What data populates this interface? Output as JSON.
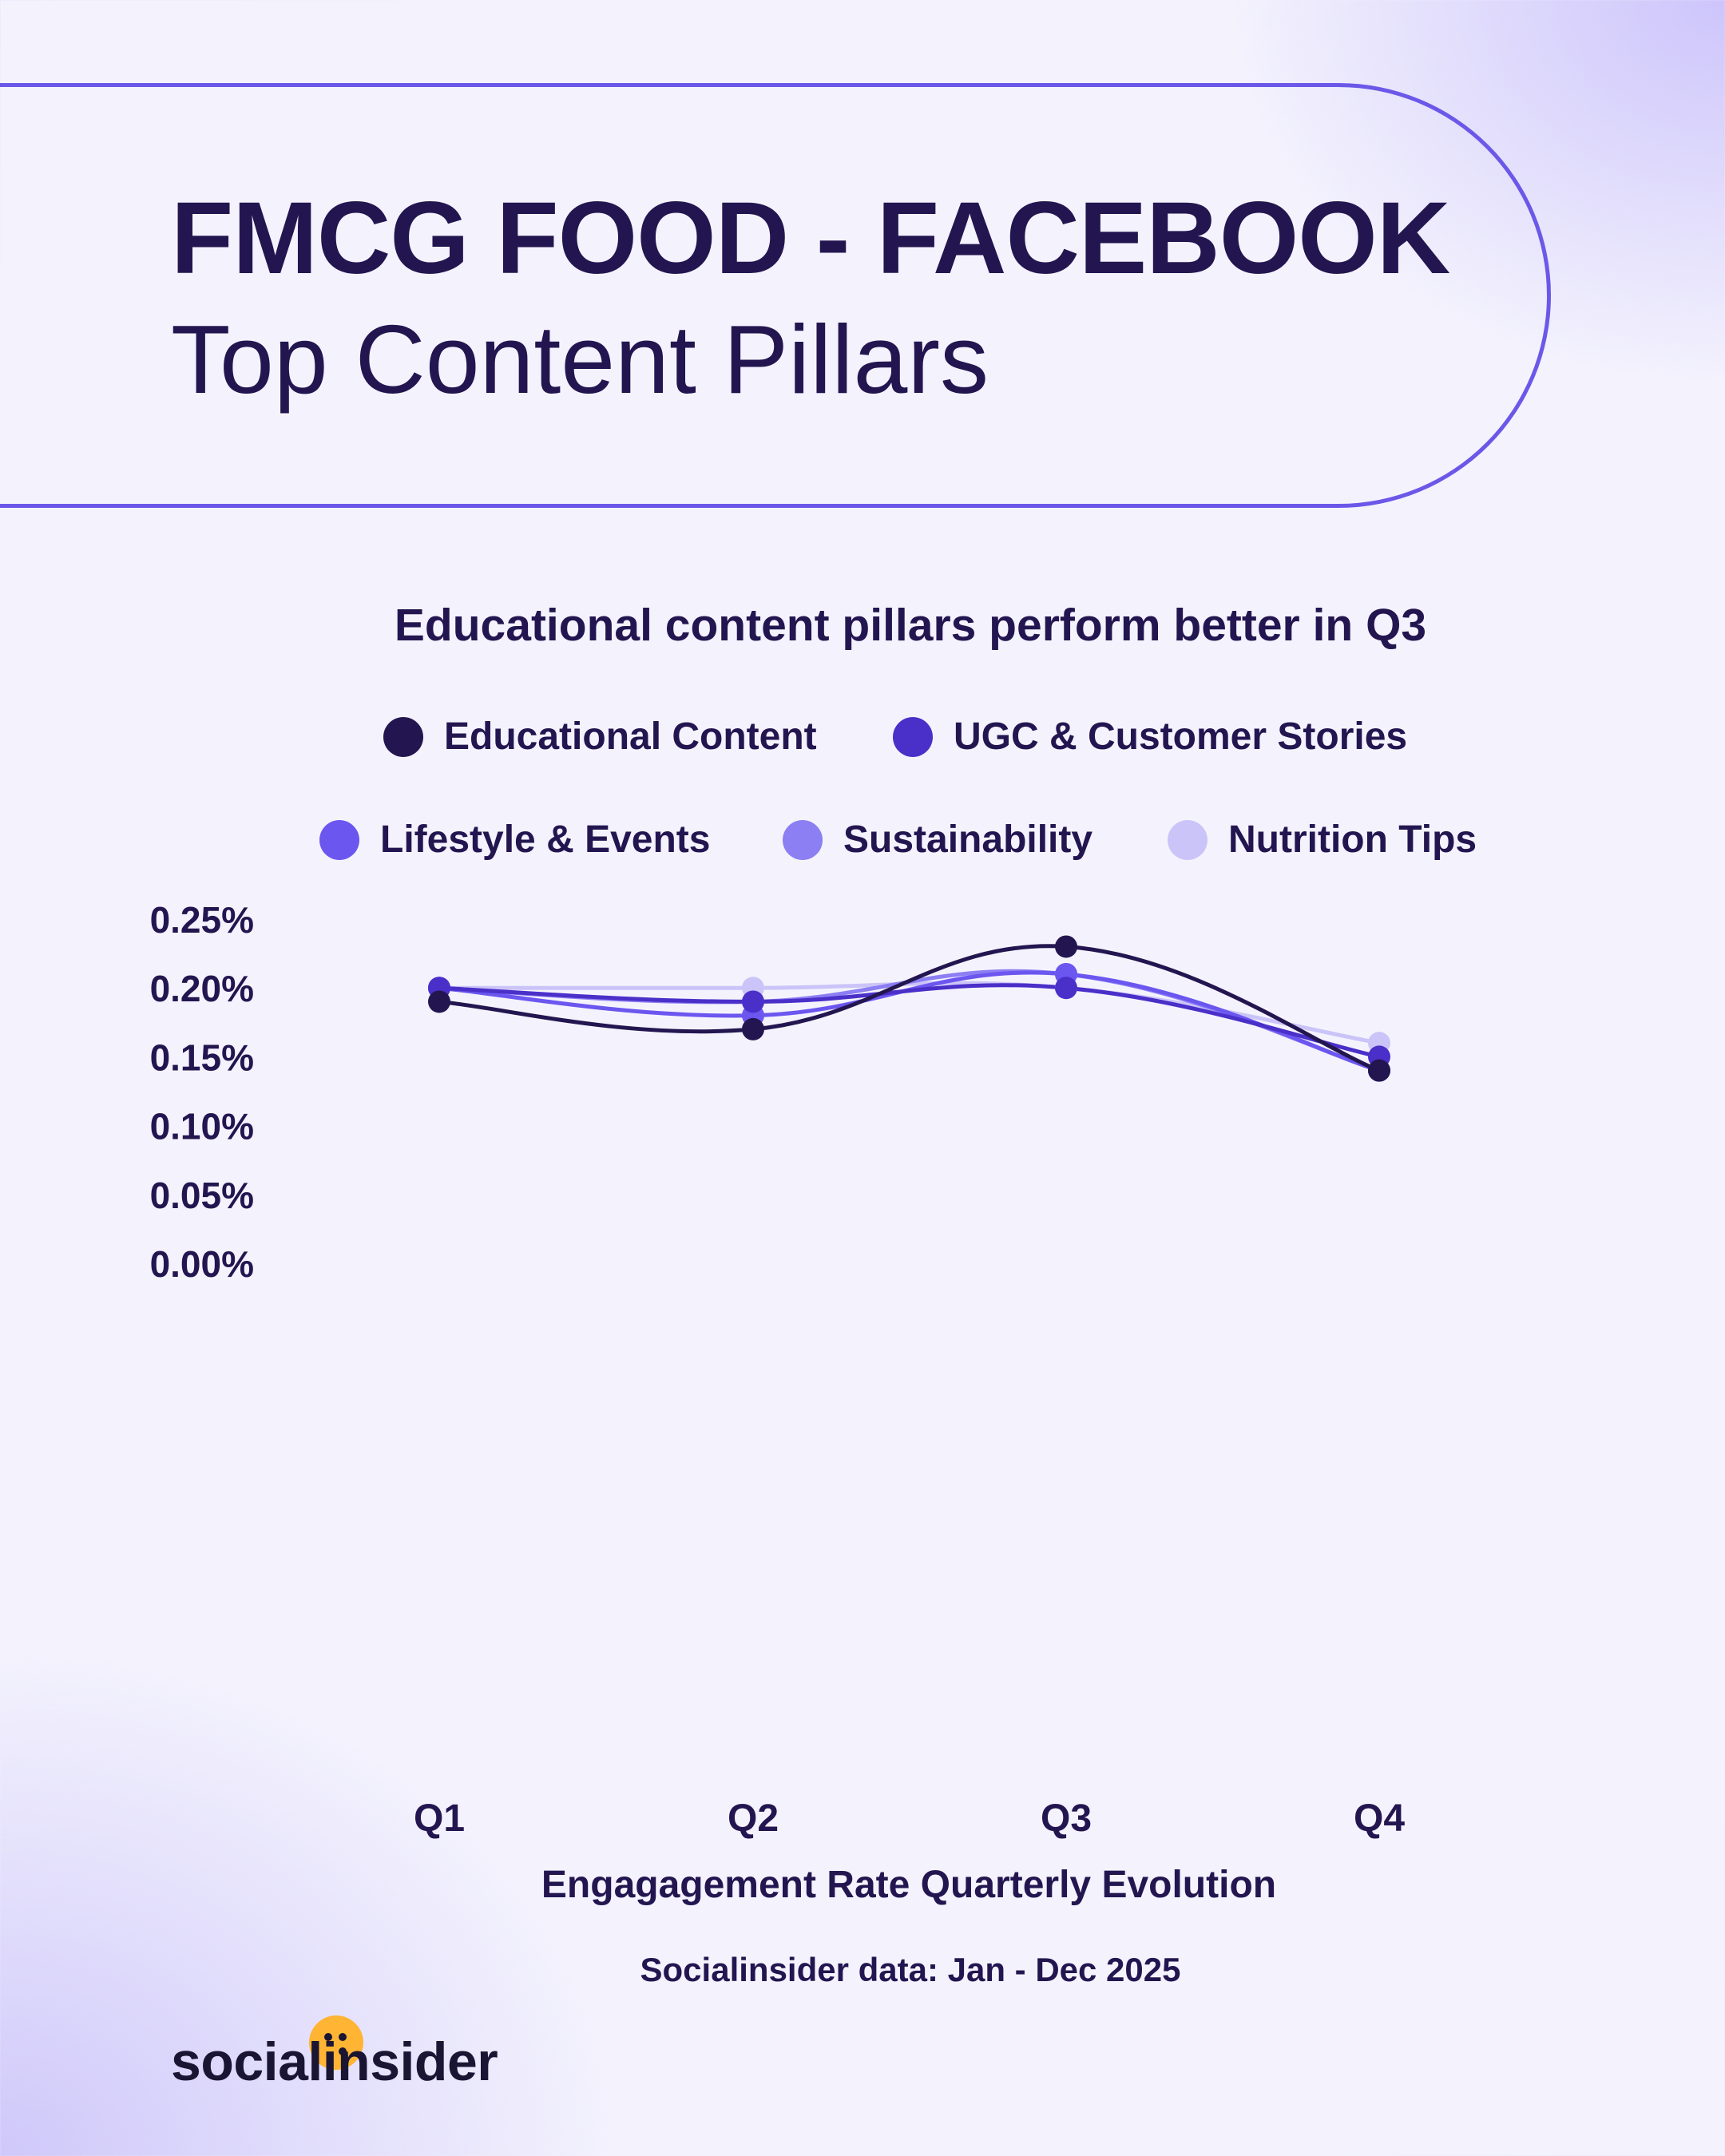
{
  "header": {
    "title": "FMCG FOOD - FACEBOOK",
    "subtitle": "Top Content Pillars"
  },
  "colors": {
    "Educational Content": "#231650",
    "UGC & Customer Stories": "#4a2fc9",
    "Lifestyle & Events": "#6b56f0",
    "Sustainability": "#8c7ef3",
    "Nutrition Tips": "#cbc4f8"
  },
  "chart_data": {
    "type": "line",
    "title": "Educational content pillars perform better in Q3",
    "xlabel": "Engagagement Rate Quarterly Evolution",
    "ylabel": "",
    "categories": [
      "Q1",
      "Q2",
      "Q3",
      "Q4"
    ],
    "ylim": [
      0,
      0.25
    ],
    "yticks": [
      "0.25%",
      "0.20%",
      "0.15%",
      "0.10%",
      "0.05%",
      "0.00%"
    ],
    "ytick_values": [
      0.25,
      0.2,
      0.15,
      0.1,
      0.05,
      0.0
    ],
    "grid": false,
    "legend_position": "top",
    "series": [
      {
        "name": "Educational Content",
        "values": [
          0.19,
          0.17,
          0.23,
          0.14
        ]
      },
      {
        "name": "UGC & Customer Stories",
        "values": [
          0.2,
          0.19,
          0.2,
          0.15
        ]
      },
      {
        "name": "Lifestyle & Events",
        "values": [
          0.2,
          0.18,
          0.21,
          0.14
        ]
      },
      {
        "name": "Sustainability",
        "values": [
          0.2,
          0.19,
          0.21,
          0.14
        ]
      },
      {
        "name": "Nutrition Tips",
        "values": [
          0.2,
          0.2,
          0.2,
          0.16
        ]
      }
    ]
  },
  "footer": {
    "source": "Socialinsider data: Jan - Dec 2025",
    "brand": "socialinsider"
  }
}
